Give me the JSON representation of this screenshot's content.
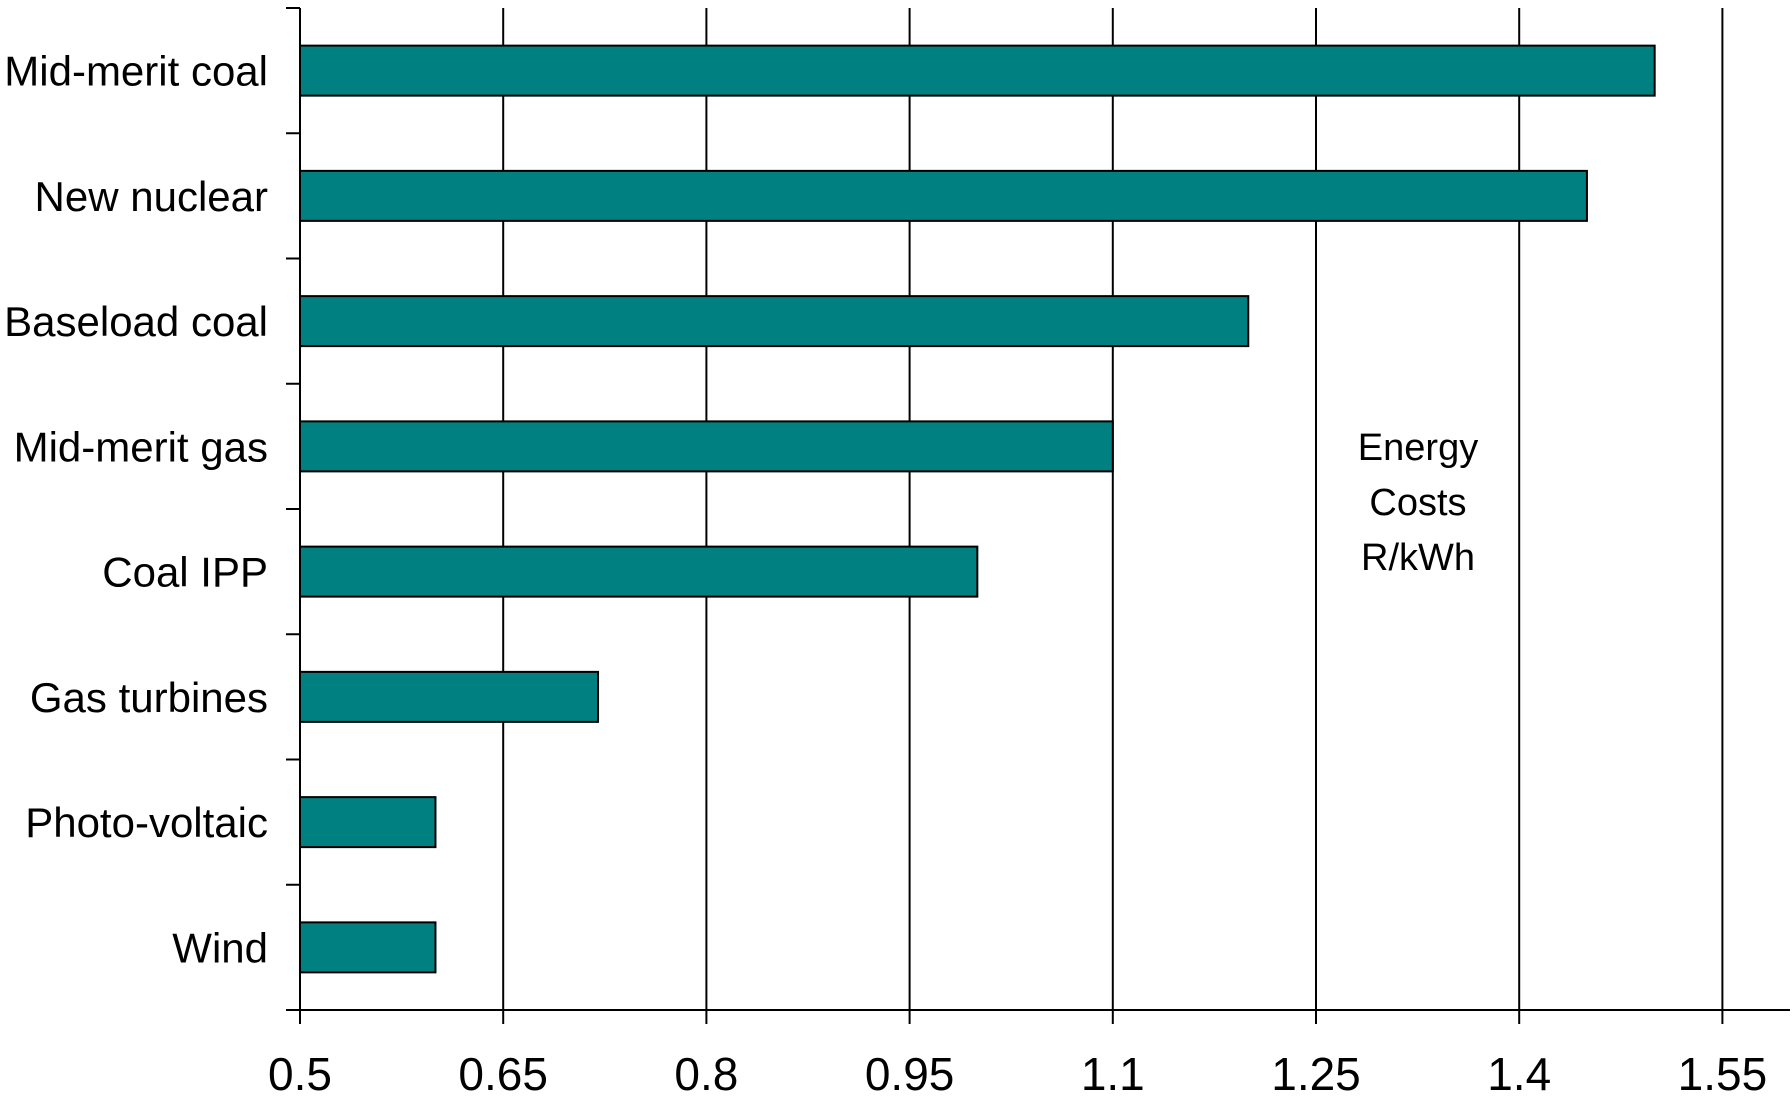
{
  "chart_data": {
    "type": "bar",
    "orientation": "horizontal",
    "categories": [
      "Mid-merit coal",
      "New nuclear",
      "Baseload coal",
      "Mid-merit gas",
      "Coal IPP",
      "Gas turbines",
      "Photo-voltaic",
      "Wind"
    ],
    "series": [
      {
        "values": [
          1.5,
          1.45,
          1.2,
          1.1,
          1.0,
          0.72,
          0.6,
          0.6
        ]
      }
    ],
    "x_ticks": [
      "0.5",
      "0.65",
      "0.8",
      "0.95",
      "1.1",
      "1.25",
      "1.4",
      "1.55"
    ],
    "xlim": [
      0.5,
      1.55
    ],
    "annotation": [
      "Energy",
      "Costs",
      "R/kWh"
    ],
    "grid": "vertical",
    "legend": "none",
    "bar_color": "#008080",
    "bar_edge_color": "#000000",
    "title": "",
    "xlabel": "",
    "ylabel": ""
  }
}
